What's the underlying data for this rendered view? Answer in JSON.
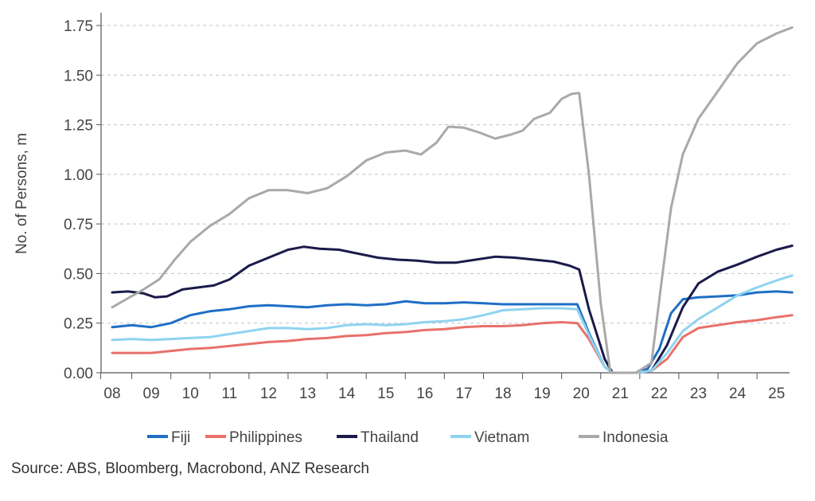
{
  "chart_data": {
    "type": "line",
    "ylabel": "No. of Persons, m",
    "xlabel": "",
    "ylim": [
      0,
      1.75
    ],
    "xlim": [
      2008,
      2025.5
    ],
    "yticks": [
      "0.00",
      "0.25",
      "0.50",
      "0.75",
      "1.00",
      "1.25",
      "1.50",
      "1.75"
    ],
    "xticks": [
      "08",
      "09",
      "10",
      "11",
      "12",
      "13",
      "14",
      "15",
      "16",
      "17",
      "18",
      "19",
      "20",
      "21",
      "22",
      "23",
      "24",
      "25"
    ],
    "grid": "horizontal dashed",
    "legend_position": "bottom",
    "source": "Source: ABS, Bloomberg, Macrobond, ANZ Research",
    "series": [
      {
        "name": "Fiji",
        "color": "#1f6fc5",
        "points": [
          [
            2008,
            0.23
          ],
          [
            2008.5,
            0.24
          ],
          [
            2009,
            0.23
          ],
          [
            2009.5,
            0.25
          ],
          [
            2010,
            0.29
          ],
          [
            2010.5,
            0.31
          ],
          [
            2011,
            0.32
          ],
          [
            2011.5,
            0.335
          ],
          [
            2012,
            0.34
          ],
          [
            2012.5,
            0.335
          ],
          [
            2013,
            0.33
          ],
          [
            2013.5,
            0.34
          ],
          [
            2014,
            0.345
          ],
          [
            2014.5,
            0.34
          ],
          [
            2015,
            0.345
          ],
          [
            2015.5,
            0.36
          ],
          [
            2016,
            0.35
          ],
          [
            2016.5,
            0.35
          ],
          [
            2017,
            0.355
          ],
          [
            2017.5,
            0.35
          ],
          [
            2018,
            0.345
          ],
          [
            2018.5,
            0.345
          ],
          [
            2019,
            0.345
          ],
          [
            2019.5,
            0.345
          ],
          [
            2019.9,
            0.345
          ],
          [
            2020.2,
            0.2
          ],
          [
            2020.6,
            0.03
          ],
          [
            2020.8,
            0.0
          ],
          [
            2021.4,
            0.0
          ],
          [
            2021.7,
            0.02
          ],
          [
            2022,
            0.12
          ],
          [
            2022.3,
            0.3
          ],
          [
            2022.6,
            0.37
          ],
          [
            2023,
            0.38
          ],
          [
            2023.5,
            0.385
          ],
          [
            2024,
            0.39
          ],
          [
            2024.5,
            0.405
          ],
          [
            2025,
            0.41
          ],
          [
            2025.4,
            0.405
          ]
        ]
      },
      {
        "name": "Philippines",
        "color": "#e8716a",
        "points": [
          [
            2008,
            0.1
          ],
          [
            2008.5,
            0.1
          ],
          [
            2009,
            0.1
          ],
          [
            2009.5,
            0.11
          ],
          [
            2010,
            0.12
          ],
          [
            2010.5,
            0.125
          ],
          [
            2011,
            0.135
          ],
          [
            2011.5,
            0.145
          ],
          [
            2012,
            0.155
          ],
          [
            2012.5,
            0.16
          ],
          [
            2013,
            0.17
          ],
          [
            2013.5,
            0.175
          ],
          [
            2014,
            0.185
          ],
          [
            2014.5,
            0.19
          ],
          [
            2015,
            0.2
          ],
          [
            2015.5,
            0.205
          ],
          [
            2016,
            0.215
          ],
          [
            2016.5,
            0.22
          ],
          [
            2017,
            0.23
          ],
          [
            2017.5,
            0.235
          ],
          [
            2018,
            0.235
          ],
          [
            2018.5,
            0.24
          ],
          [
            2019,
            0.25
          ],
          [
            2019.5,
            0.255
          ],
          [
            2019.9,
            0.25
          ],
          [
            2020.2,
            0.17
          ],
          [
            2020.6,
            0.03
          ],
          [
            2020.8,
            0.0
          ],
          [
            2021.4,
            0.0
          ],
          [
            2021.8,
            0.01
          ],
          [
            2022.2,
            0.07
          ],
          [
            2022.6,
            0.18
          ],
          [
            2023,
            0.225
          ],
          [
            2023.5,
            0.24
          ],
          [
            2024,
            0.255
          ],
          [
            2024.5,
            0.265
          ],
          [
            2025,
            0.28
          ],
          [
            2025.4,
            0.29
          ]
        ]
      },
      {
        "name": "Thailand",
        "color": "#1b1a4a",
        "points": [
          [
            2008,
            0.405
          ],
          [
            2008.4,
            0.41
          ],
          [
            2008.8,
            0.4
          ],
          [
            2009.1,
            0.38
          ],
          [
            2009.4,
            0.385
          ],
          [
            2009.8,
            0.42
          ],
          [
            2010.2,
            0.43
          ],
          [
            2010.6,
            0.44
          ],
          [
            2011,
            0.47
          ],
          [
            2011.5,
            0.54
          ],
          [
            2012,
            0.58
          ],
          [
            2012.5,
            0.62
          ],
          [
            2012.9,
            0.635
          ],
          [
            2013.3,
            0.625
          ],
          [
            2013.8,
            0.62
          ],
          [
            2014.3,
            0.6
          ],
          [
            2014.8,
            0.58
          ],
          [
            2015.3,
            0.57
          ],
          [
            2015.8,
            0.565
          ],
          [
            2016.3,
            0.555
          ],
          [
            2016.8,
            0.555
          ],
          [
            2017.3,
            0.57
          ],
          [
            2017.8,
            0.585
          ],
          [
            2018.3,
            0.58
          ],
          [
            2018.8,
            0.57
          ],
          [
            2019.3,
            0.56
          ],
          [
            2019.7,
            0.54
          ],
          [
            2019.95,
            0.52
          ],
          [
            2020.2,
            0.32
          ],
          [
            2020.6,
            0.07
          ],
          [
            2020.8,
            0.0
          ],
          [
            2021.4,
            0.0
          ],
          [
            2021.8,
            0.01
          ],
          [
            2022.2,
            0.14
          ],
          [
            2022.6,
            0.33
          ],
          [
            2023,
            0.45
          ],
          [
            2023.5,
            0.51
          ],
          [
            2024,
            0.545
          ],
          [
            2024.5,
            0.585
          ],
          [
            2025,
            0.62
          ],
          [
            2025.4,
            0.64
          ]
        ]
      },
      {
        "name": "Vietnam",
        "color": "#8fd3f0",
        "points": [
          [
            2008,
            0.165
          ],
          [
            2008.5,
            0.17
          ],
          [
            2009,
            0.165
          ],
          [
            2009.5,
            0.17
          ],
          [
            2010,
            0.175
          ],
          [
            2010.5,
            0.18
          ],
          [
            2011,
            0.195
          ],
          [
            2011.5,
            0.21
          ],
          [
            2012,
            0.225
          ],
          [
            2012.5,
            0.225
          ],
          [
            2013,
            0.22
          ],
          [
            2013.5,
            0.225
          ],
          [
            2014,
            0.24
          ],
          [
            2014.5,
            0.245
          ],
          [
            2015,
            0.24
          ],
          [
            2015.5,
            0.245
          ],
          [
            2016,
            0.255
          ],
          [
            2016.5,
            0.26
          ],
          [
            2017,
            0.27
          ],
          [
            2017.5,
            0.29
          ],
          [
            2018,
            0.315
          ],
          [
            2018.5,
            0.32
          ],
          [
            2019,
            0.325
          ],
          [
            2019.5,
            0.325
          ],
          [
            2019.9,
            0.32
          ],
          [
            2020.2,
            0.19
          ],
          [
            2020.6,
            0.03
          ],
          [
            2020.8,
            0.0
          ],
          [
            2021.4,
            0.0
          ],
          [
            2021.8,
            0.01
          ],
          [
            2022.2,
            0.1
          ],
          [
            2022.6,
            0.21
          ],
          [
            2023,
            0.27
          ],
          [
            2023.5,
            0.33
          ],
          [
            2024,
            0.39
          ],
          [
            2024.5,
            0.43
          ],
          [
            2025,
            0.465
          ],
          [
            2025.4,
            0.49
          ]
        ]
      },
      {
        "name": "Indonesia",
        "color": "#a9a9a9",
        "points": [
          [
            2008,
            0.33
          ],
          [
            2008.4,
            0.375
          ],
          [
            2008.8,
            0.42
          ],
          [
            2009.2,
            0.47
          ],
          [
            2009.6,
            0.57
          ],
          [
            2010,
            0.66
          ],
          [
            2010.5,
            0.74
          ],
          [
            2011,
            0.8
          ],
          [
            2011.5,
            0.88
          ],
          [
            2012,
            0.92
          ],
          [
            2012.5,
            0.92
          ],
          [
            2013,
            0.905
          ],
          [
            2013.5,
            0.93
          ],
          [
            2014,
            0.99
          ],
          [
            2014.5,
            1.07
          ],
          [
            2015,
            1.11
          ],
          [
            2015.5,
            1.12
          ],
          [
            2015.9,
            1.1
          ],
          [
            2016.3,
            1.16
          ],
          [
            2016.6,
            1.24
          ],
          [
            2017,
            1.235
          ],
          [
            2017.4,
            1.21
          ],
          [
            2017.8,
            1.18
          ],
          [
            2018.2,
            1.2
          ],
          [
            2018.5,
            1.22
          ],
          [
            2018.8,
            1.28
          ],
          [
            2019.2,
            1.31
          ],
          [
            2019.5,
            1.38
          ],
          [
            2019.75,
            1.405
          ],
          [
            2019.95,
            1.41
          ],
          [
            2020.2,
            1.0
          ],
          [
            2020.5,
            0.35
          ],
          [
            2020.75,
            0.0
          ],
          [
            2021.4,
            0.0
          ],
          [
            2021.8,
            0.05
          ],
          [
            2022.05,
            0.45
          ],
          [
            2022.3,
            0.83
          ],
          [
            2022.6,
            1.1
          ],
          [
            2023,
            1.28
          ],
          [
            2023.5,
            1.42
          ],
          [
            2024,
            1.56
          ],
          [
            2024.5,
            1.66
          ],
          [
            2025,
            1.71
          ],
          [
            2025.4,
            1.74
          ]
        ]
      }
    ]
  }
}
